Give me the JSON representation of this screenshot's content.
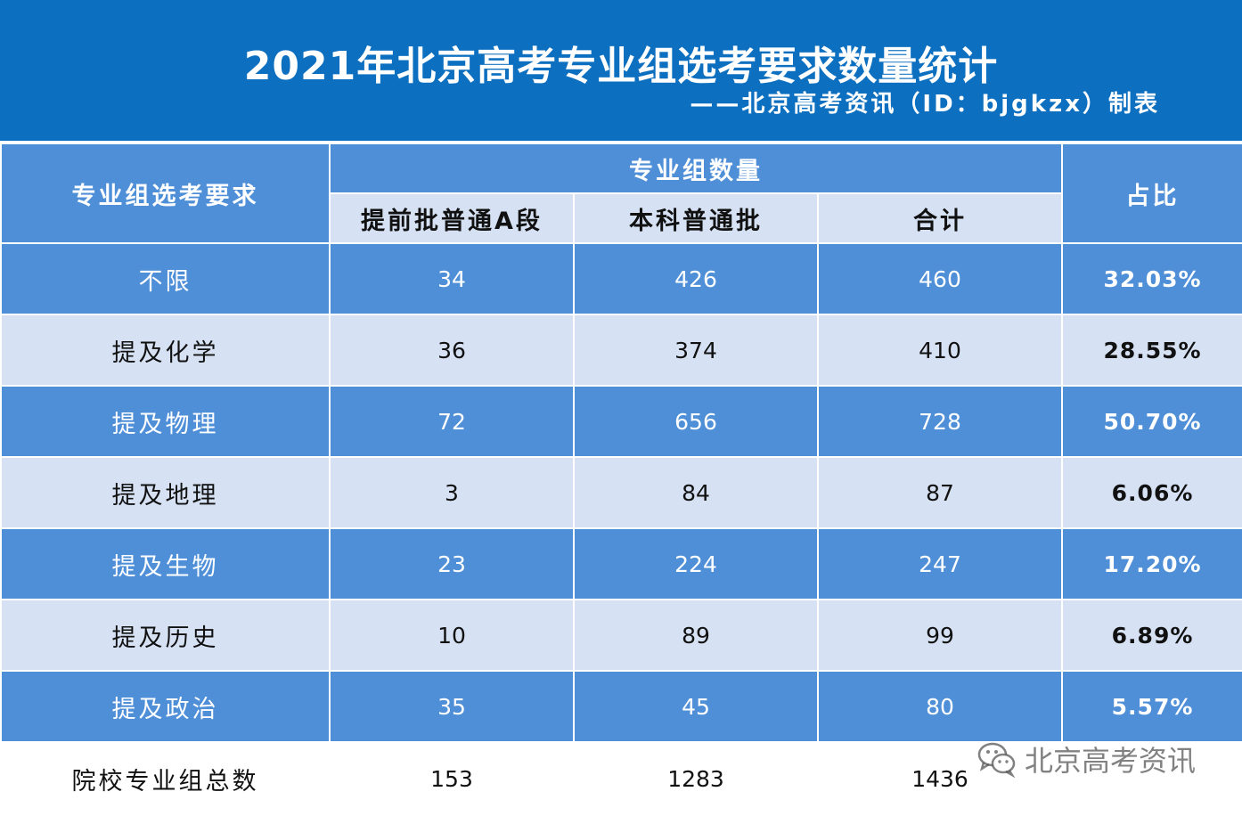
{
  "title": "2021年北京高考专业组选考要求数量统计",
  "subtitle": "——北京高考资讯（ID：bjgkzx）制表",
  "headers": {
    "requirement": "专业组选考要求",
    "group_count": "专业组数量",
    "col_a": "提前批普通A段",
    "col_b": "本科普通批",
    "col_total": "合计",
    "ratio": "占比"
  },
  "rows": [
    {
      "label": "不限",
      "a": "34",
      "b": "426",
      "total": "460",
      "pct": "32.03%"
    },
    {
      "label": "提及化学",
      "a": "36",
      "b": "374",
      "total": "410",
      "pct": "28.55%"
    },
    {
      "label": "提及物理",
      "a": "72",
      "b": "656",
      "total": "728",
      "pct": "50.70%"
    },
    {
      "label": "提及地理",
      "a": "3",
      "b": "84",
      "total": "87",
      "pct": "6.06%"
    },
    {
      "label": "提及生物",
      "a": "23",
      "b": "224",
      "total": "247",
      "pct": "17.20%"
    },
    {
      "label": "提及历史",
      "a": "10",
      "b": "89",
      "total": "99",
      "pct": "6.89%"
    },
    {
      "label": "提及政治",
      "a": "35",
      "b": "45",
      "total": "80",
      "pct": "5.57%"
    }
  ],
  "total_row": {
    "label": "院校专业组总数",
    "a": "153",
    "b": "1283",
    "total": "1436"
  },
  "watermark": {
    "text": "北京高考资讯",
    "icon": "wechat-icon"
  },
  "colors": {
    "title_band": "#0d6fbf",
    "dark_row": "#4f8fd8",
    "light_row": "#d6e2f4"
  }
}
